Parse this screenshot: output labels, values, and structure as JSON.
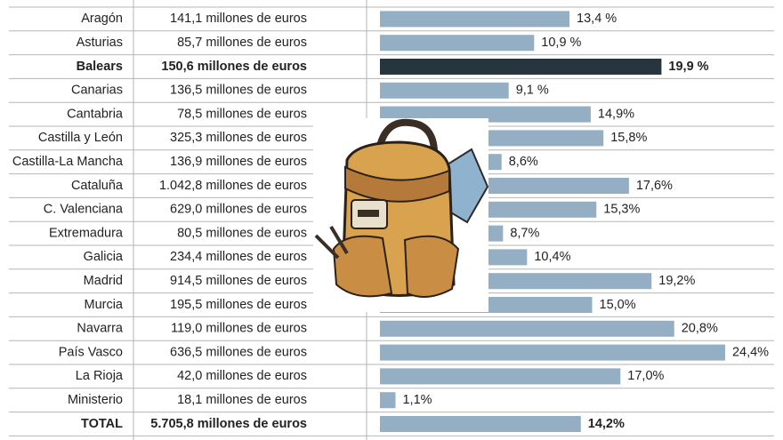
{
  "chart_data": {
    "type": "bar",
    "orientation": "horizontal",
    "categories": [
      "Aragón",
      "Asturias",
      "Balears",
      "Canarias",
      "Cantabria",
      "Castilla y León",
      "Castilla-La Mancha",
      "Cataluña",
      "C. Valenciana",
      "Extremadura",
      "Galicia",
      "Madrid",
      "Murcia",
      "Navarra",
      "País Vasco",
      "La Rioja",
      "Ministerio",
      "TOTAL"
    ],
    "amounts": [
      "141,1 millones de euros",
      "85,7 millones de euros",
      "150,6 millones de euros",
      "136,5 millones de euros",
      "78,5 millones de euros",
      "325,3 millones de euros",
      "136,9 millones de euros",
      "1.042,8 millones de euros",
      "629,0 millones de euros",
      "80,5 millones de euros",
      "234,4 millones de euros",
      "914,5 millones de euros",
      "195,5 millones de euros",
      "119,0 millones de euros",
      "636,5 millones de euros",
      "42,0 millones de euros",
      "18,1 millones de euros",
      "5.705,8 millones de euros"
    ],
    "values": [
      13.4,
      10.9,
      19.9,
      9.1,
      14.9,
      15.8,
      8.6,
      17.6,
      15.3,
      8.7,
      10.4,
      19.2,
      15.0,
      20.8,
      24.4,
      17.0,
      1.1,
      14.2
    ],
    "value_labels": [
      "13,4 %",
      "10,9 %",
      "19,9 %",
      "9,1 %",
      "14,9%",
      "15,8%",
      "8,6%",
      "17,6%",
      "15,3%",
      "8,7%",
      "10,4%",
      "19,2%",
      "15,0%",
      "20,8%",
      "24,4%",
      "17,0%",
      "1,1%",
      "14,2%"
    ],
    "colors": [
      "#94aec4",
      "#94aec4",
      "#27353f",
      "#94aec4",
      "#94aec4",
      "#94aec4",
      "#94aec4",
      "#94aec4",
      "#94aec4",
      "#94aec4",
      "#94aec4",
      "#94aec4",
      "#94aec4",
      "#94aec4",
      "#94aec4",
      "#94aec4",
      "#94aec4",
      "#94aec4"
    ],
    "bold": [
      false,
      false,
      true,
      false,
      false,
      false,
      false,
      false,
      false,
      false,
      false,
      false,
      false,
      false,
      false,
      false,
      false,
      true
    ]
  }
}
